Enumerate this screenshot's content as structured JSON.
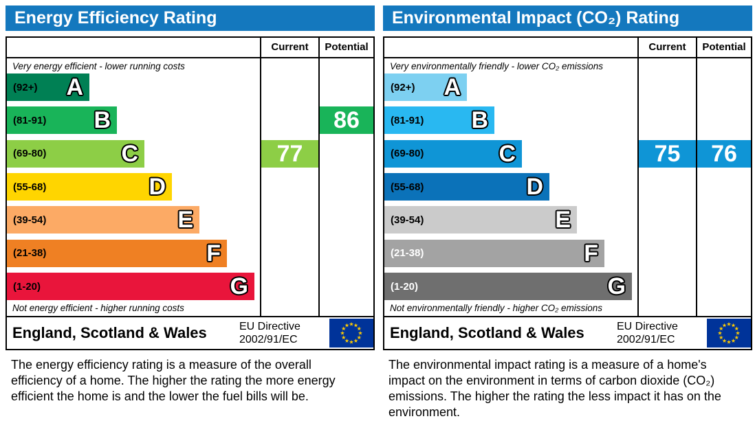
{
  "page": {
    "background": "#ffffff"
  },
  "panels": [
    {
      "title": "Energy Efficiency Rating",
      "title_bg": "#1478be",
      "columns": {
        "current": "Current",
        "potential": "Potential"
      },
      "caption_top": "Very energy efficient - lower running costs",
      "caption_bottom": "Not energy efficient - higher running costs",
      "bands": [
        {
          "grade": "A",
          "range": "(92+)",
          "color": "#008054",
          "label_color": "#000000"
        },
        {
          "grade": "B",
          "range": "(81-91)",
          "color": "#19b459",
          "label_color": "#000000"
        },
        {
          "grade": "C",
          "range": "(69-80)",
          "color": "#8dce46",
          "label_color": "#000000"
        },
        {
          "grade": "D",
          "range": "(55-68)",
          "color": "#ffd500",
          "label_color": "#000000"
        },
        {
          "grade": "E",
          "range": "(39-54)",
          "color": "#fcaa65",
          "label_color": "#000000"
        },
        {
          "grade": "F",
          "range": "(21-38)",
          "color": "#ef8023",
          "label_color": "#000000"
        },
        {
          "grade": "G",
          "range": "(1-20)",
          "color": "#e9153b",
          "label_color": "#000000"
        }
      ],
      "current": {
        "value": "77",
        "band": "C",
        "color": "#8dce46"
      },
      "potential": {
        "value": "86",
        "band": "B",
        "color": "#19b459"
      },
      "footer": {
        "region": "England, Scotland & Wales",
        "directive_line1": "EU Directive",
        "directive_line2": "2002/91/EC",
        "flag_bg": "#003399",
        "star_color": "#ffcc00"
      },
      "description": "The energy efficiency rating is a measure of the overall efficiency of a home. The higher the rating the more energy efficient the home is and the lower the fuel bills will be."
    },
    {
      "title": "Environmental Impact (CO₂) Rating",
      "title_bg": "#1478be",
      "columns": {
        "current": "Current",
        "potential": "Potential"
      },
      "caption_top": "Very environmentally friendly - lower CO₂ emissions",
      "caption_bottom": "Not environmentally friendly - higher CO₂ emissions",
      "bands": [
        {
          "grade": "A",
          "range": "(92+)",
          "color": "#7dd0f1",
          "label_color": "#000000"
        },
        {
          "grade": "B",
          "range": "(81-91)",
          "color": "#29b8f1",
          "label_color": "#000000"
        },
        {
          "grade": "C",
          "range": "(69-80)",
          "color": "#0f95d6",
          "label_color": "#000000"
        },
        {
          "grade": "D",
          "range": "(55-68)",
          "color": "#0b72b9",
          "label_color": "#000000"
        },
        {
          "grade": "E",
          "range": "(39-54)",
          "color": "#cbcbcb",
          "label_color": "#000000"
        },
        {
          "grade": "F",
          "range": "(21-38)",
          "color": "#a3a3a3",
          "label_color": "#ffffff"
        },
        {
          "grade": "G",
          "range": "(1-20)",
          "color": "#6f6f6f",
          "label_color": "#ffffff"
        }
      ],
      "current": {
        "value": "75",
        "band": "C",
        "color": "#0f95d6"
      },
      "potential": {
        "value": "76",
        "band": "C",
        "color": "#0f95d6"
      },
      "footer": {
        "region": "England, Scotland & Wales",
        "directive_line1": "EU Directive",
        "directive_line2": "2002/91/EC",
        "flag_bg": "#003399",
        "star_color": "#ffcc00"
      },
      "description": "The environmental impact rating is a measure of a home's impact on the environment in terms of carbon dioxide (CO₂) emissions. The higher the rating the less impact it has on the environment."
    }
  ],
  "chart_data": [
    {
      "type": "bar",
      "orientation": "horizontal",
      "title": "Energy Efficiency Rating",
      "categories": [
        "A",
        "B",
        "C",
        "D",
        "E",
        "F",
        "G"
      ],
      "category_ranges": [
        "92+",
        "81-91",
        "69-80",
        "55-68",
        "39-54",
        "21-38",
        "1-20"
      ],
      "series": [
        {
          "name": "Current",
          "value": 77,
          "band": "C"
        },
        {
          "name": "Potential",
          "value": 86,
          "band": "B"
        }
      ],
      "annotations": [
        "Very energy efficient - lower running costs",
        "Not energy efficient - higher running costs"
      ],
      "footer": "England, Scotland & Wales — EU Directive 2002/91/EC"
    },
    {
      "type": "bar",
      "orientation": "horizontal",
      "title": "Environmental Impact (CO₂) Rating",
      "categories": [
        "A",
        "B",
        "C",
        "D",
        "E",
        "F",
        "G"
      ],
      "category_ranges": [
        "92+",
        "81-91",
        "69-80",
        "55-68",
        "39-54",
        "21-38",
        "1-20"
      ],
      "series": [
        {
          "name": "Current",
          "value": 75,
          "band": "C"
        },
        {
          "name": "Potential",
          "value": 76,
          "band": "C"
        }
      ],
      "annotations": [
        "Very environmentally friendly - lower CO₂ emissions",
        "Not environmentally friendly - higher CO₂ emissions"
      ],
      "footer": "England, Scotland & Wales — EU Directive 2002/91/EC"
    }
  ]
}
